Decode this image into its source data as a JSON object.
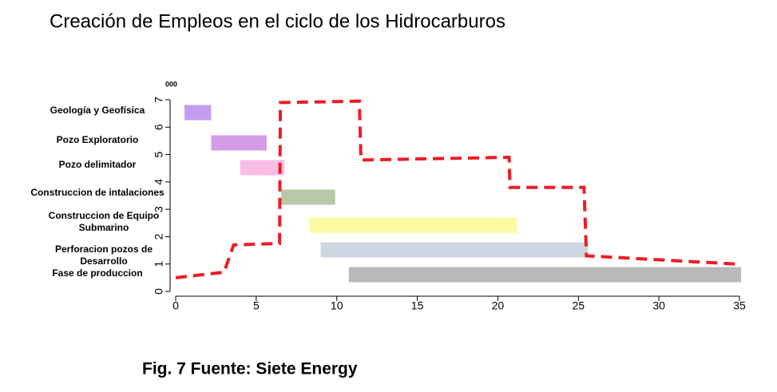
{
  "chart_data": {
    "type": "gantt",
    "title": "Creación de Empleos en el ciclo de los Hidrocarburos",
    "caption": "Fig. 7 Fuente: Siete Energy",
    "y_label": "000",
    "categories": [
      "Geología y Geofísica",
      "Pozo Exploratorio",
      "Pozo delimitador",
      "Construccion de intalaciones",
      "Construccion de Equipo Submarino",
      "Perforacion pozos de Desarrollo",
      "Fase de produccion"
    ],
    "starts": [
      0.55,
      2.2,
      4.0,
      6.55,
      8.3,
      9.0,
      10.75
    ],
    "ends": [
      2.2,
      5.65,
      6.75,
      9.9,
      21.2,
      25.6,
      35.1
    ],
    "colors": [
      "#c39ef0",
      "#d49be6",
      "#fbbde6",
      "#b7c9a9",
      "#fafaa0",
      "#cdd5e0",
      "#b9b9b9"
    ],
    "line": {
      "color": "#ee1c25",
      "x": [
        0,
        3.0,
        3.6,
        6.45,
        6.5,
        11.4,
        11.5,
        20.7,
        20.75,
        25.35,
        25.5,
        34.8
      ],
      "values": [
        0.5,
        0.7,
        1.7,
        1.75,
        6.9,
        6.95,
        4.8,
        4.9,
        3.8,
        3.8,
        1.3,
        1.0
      ]
    },
    "xlim": [
      0,
      35
    ],
    "xticks": [
      0,
      5,
      10,
      15,
      20,
      25,
      30,
      35
    ],
    "ylim": [
      0,
      7
    ],
    "yticks": [
      0,
      1,
      2,
      3,
      4,
      5,
      6,
      7
    ]
  }
}
